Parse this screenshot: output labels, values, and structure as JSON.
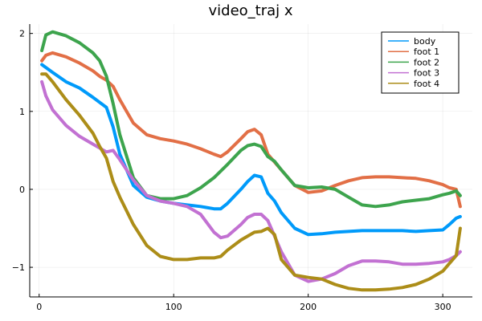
{
  "chart_data": {
    "type": "line",
    "title": "video_traj x",
    "xlabel": "",
    "ylabel": "",
    "xlim": [
      -7,
      322
    ],
    "ylim": [
      -1.38,
      2.12
    ],
    "x_ticks": [
      0,
      100,
      200,
      300
    ],
    "y_ticks": [
      -1,
      0,
      1,
      2
    ],
    "grid": true,
    "legend_position": "top-right",
    "series": [
      {
        "name": "body",
        "color": "#009AFA",
        "x": [
          2,
          10,
          20,
          30,
          40,
          50,
          55,
          60,
          70,
          80,
          90,
          100,
          110,
          120,
          130,
          135,
          140,
          150,
          155,
          160,
          165,
          170,
          175,
          180,
          190,
          200,
          210,
          220,
          230,
          240,
          250,
          260,
          270,
          280,
          290,
          300,
          305,
          310,
          313
        ],
        "y": [
          1.6,
          1.5,
          1.38,
          1.3,
          1.18,
          1.05,
          0.8,
          0.45,
          0.05,
          -0.1,
          -0.15,
          -0.18,
          -0.2,
          -0.22,
          -0.25,
          -0.25,
          -0.18,
          0.0,
          0.1,
          0.18,
          0.16,
          -0.05,
          -0.15,
          -0.3,
          -0.5,
          -0.58,
          -0.57,
          -0.55,
          -0.54,
          -0.53,
          -0.53,
          -0.53,
          -0.53,
          -0.54,
          -0.53,
          -0.52,
          -0.45,
          -0.37,
          -0.35
        ]
      },
      {
        "name": "foot 1",
        "color": "#E26F46",
        "x": [
          2,
          5,
          10,
          20,
          30,
          40,
          45,
          50,
          55,
          60,
          70,
          80,
          90,
          100,
          110,
          120,
          130,
          135,
          140,
          150,
          155,
          160,
          165,
          170,
          180,
          190,
          200,
          210,
          220,
          230,
          240,
          250,
          260,
          270,
          280,
          290,
          300,
          305,
          310,
          313
        ],
        "y": [
          1.65,
          1.72,
          1.75,
          1.7,
          1.62,
          1.52,
          1.45,
          1.4,
          1.32,
          1.15,
          0.85,
          0.7,
          0.65,
          0.62,
          0.58,
          0.52,
          0.45,
          0.42,
          0.48,
          0.65,
          0.74,
          0.77,
          0.7,
          0.45,
          0.25,
          0.05,
          -0.04,
          -0.02,
          0.05,
          0.11,
          0.15,
          0.16,
          0.16,
          0.15,
          0.14,
          0.11,
          0.06,
          0.02,
          0.0,
          -0.22
        ]
      },
      {
        "name": "foot 2",
        "color": "#3DA44D",
        "x": [
          2,
          5,
          10,
          20,
          30,
          40,
          45,
          50,
          55,
          60,
          70,
          80,
          90,
          100,
          110,
          120,
          130,
          140,
          150,
          155,
          160,
          165,
          170,
          175,
          180,
          190,
          200,
          210,
          220,
          230,
          240,
          250,
          260,
          270,
          280,
          290,
          300,
          305,
          310,
          313
        ],
        "y": [
          1.78,
          1.98,
          2.02,
          1.97,
          1.88,
          1.75,
          1.65,
          1.45,
          1.1,
          0.7,
          0.15,
          -0.08,
          -0.12,
          -0.12,
          -0.08,
          0.02,
          0.15,
          0.32,
          0.5,
          0.56,
          0.58,
          0.55,
          0.42,
          0.36,
          0.25,
          0.05,
          0.02,
          0.03,
          0.0,
          -0.1,
          -0.2,
          -0.22,
          -0.2,
          -0.16,
          -0.14,
          -0.12,
          -0.07,
          -0.05,
          -0.02,
          -0.08
        ]
      },
      {
        "name": "foot 3",
        "color": "#C271D2",
        "x": [
          2,
          5,
          10,
          20,
          30,
          40,
          50,
          55,
          60,
          70,
          80,
          90,
          100,
          110,
          120,
          130,
          135,
          140,
          150,
          155,
          160,
          165,
          170,
          175,
          180,
          190,
          200,
          210,
          220,
          230,
          240,
          250,
          260,
          270,
          280,
          290,
          300,
          305,
          310,
          313
        ],
        "y": [
          1.38,
          1.2,
          1.02,
          0.82,
          0.68,
          0.58,
          0.48,
          0.5,
          0.38,
          0.12,
          -0.08,
          -0.15,
          -0.18,
          -0.22,
          -0.32,
          -0.55,
          -0.62,
          -0.6,
          -0.45,
          -0.36,
          -0.32,
          -0.32,
          -0.4,
          -0.6,
          -0.8,
          -1.1,
          -1.18,
          -1.15,
          -1.08,
          -0.98,
          -0.92,
          -0.92,
          -0.93,
          -0.96,
          -0.96,
          -0.95,
          -0.93,
          -0.9,
          -0.85,
          -0.8
        ]
      },
      {
        "name": "foot 4",
        "color": "#AC8D18",
        "x": [
          2,
          5,
          10,
          20,
          30,
          40,
          45,
          50,
          55,
          60,
          70,
          80,
          90,
          100,
          110,
          120,
          130,
          135,
          140,
          150,
          160,
          165,
          170,
          175,
          180,
          190,
          200,
          210,
          220,
          230,
          240,
          250,
          260,
          270,
          280,
          290,
          300,
          305,
          310,
          313
        ],
        "y": [
          1.48,
          1.48,
          1.38,
          1.15,
          0.95,
          0.72,
          0.55,
          0.4,
          0.1,
          -0.1,
          -0.45,
          -0.72,
          -0.86,
          -0.9,
          -0.9,
          -0.88,
          -0.88,
          -0.86,
          -0.78,
          -0.65,
          -0.55,
          -0.54,
          -0.5,
          -0.58,
          -0.9,
          -1.1,
          -1.13,
          -1.15,
          -1.22,
          -1.27,
          -1.29,
          -1.29,
          -1.28,
          -1.26,
          -1.22,
          -1.15,
          -1.05,
          -0.95,
          -0.85,
          -0.5
        ]
      }
    ]
  }
}
